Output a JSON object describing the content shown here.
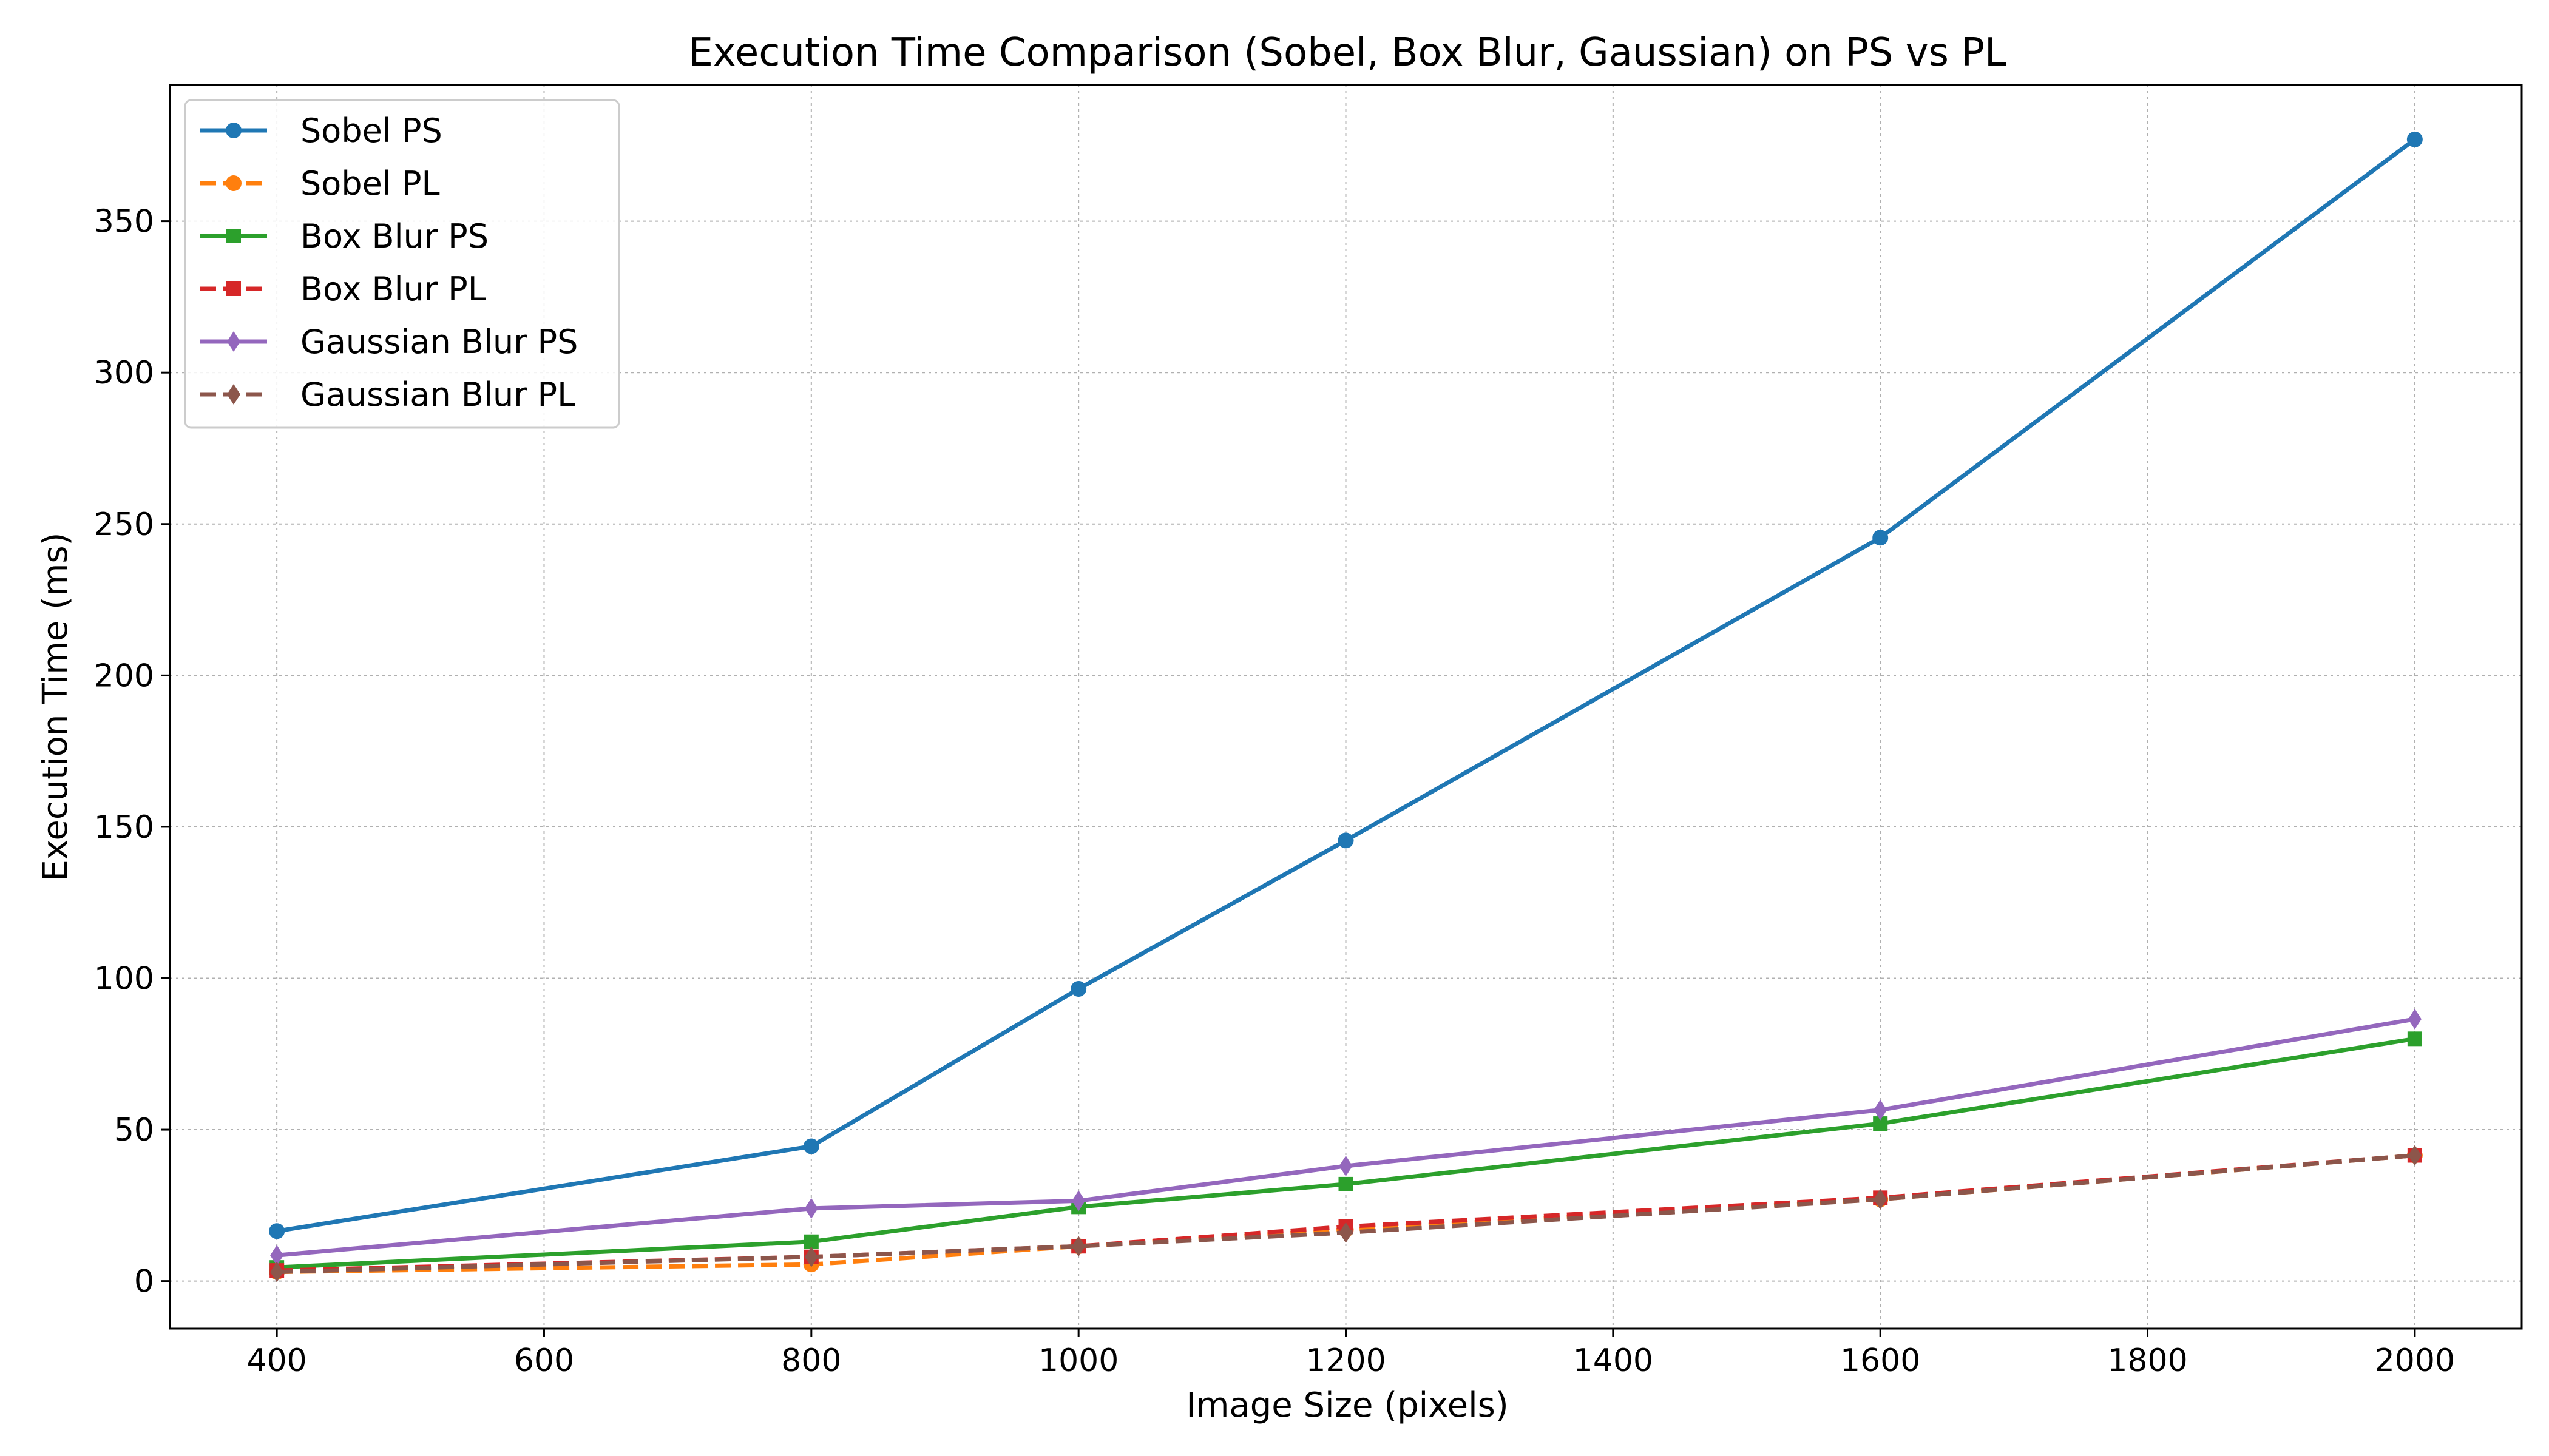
{
  "chart_data": {
    "type": "line",
    "title": "Execution Time Comparison (Sobel, Box Blur, Gaussian) on PS vs PL",
    "xlabel": "Image Size (pixels)",
    "ylabel": "Execution Time (ms)",
    "x": [
      400,
      800,
      1000,
      1200,
      1600,
      2000
    ],
    "xlim": [
      320,
      2080
    ],
    "ylim": [
      -15.7,
      395
    ],
    "xticks": [
      400,
      600,
      800,
      1000,
      1200,
      1400,
      1600,
      1800,
      2000
    ],
    "yticks": [
      0,
      50,
      100,
      150,
      200,
      250,
      300,
      350
    ],
    "grid": true,
    "legend_position": "top-left",
    "series": [
      {
        "name": "Sobel PS",
        "values": [
          16.5,
          44.5,
          96.5,
          145.5,
          245.5,
          377
        ],
        "color": "#1f77b4",
        "dashed": false,
        "marker": "circle"
      },
      {
        "name": "Sobel PL",
        "values": [
          3,
          5.5,
          11.5,
          17,
          27,
          41.5
        ],
        "color": "#ff7f0e",
        "dashed": true,
        "marker": "circle"
      },
      {
        "name": "Box Blur PS",
        "values": [
          4.5,
          13,
          24.5,
          32,
          52,
          80
        ],
        "color": "#2ca02c",
        "dashed": false,
        "marker": "square"
      },
      {
        "name": "Box Blur PL",
        "values": [
          3.5,
          8,
          11.5,
          18,
          27.5,
          41.5
        ],
        "color": "#d62728",
        "dashed": true,
        "marker": "square"
      },
      {
        "name": "Gaussian Blur PS",
        "values": [
          8.5,
          24,
          26.5,
          38,
          56.5,
          86.5
        ],
        "color": "#9467bd",
        "dashed": false,
        "marker": "diamond"
      },
      {
        "name": "Gaussian Blur PL",
        "values": [
          3,
          8,
          11.5,
          16,
          27,
          41.5
        ],
        "color": "#8c564b",
        "dashed": true,
        "marker": "diamond"
      }
    ]
  }
}
